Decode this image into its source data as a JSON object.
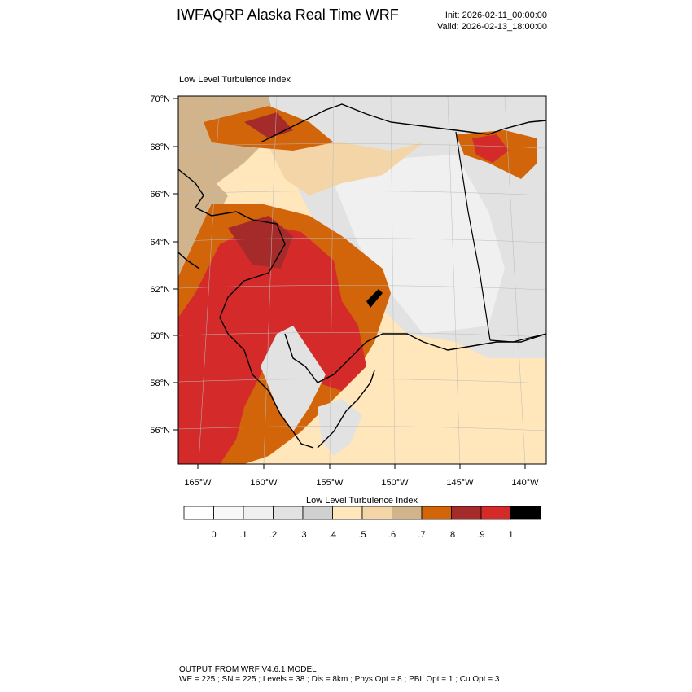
{
  "header": {
    "title": "IWFAQRP Alaska Real Time WRF",
    "init": "Init: 2026-02-11_00:00:00",
    "valid": "Valid: 2026-02-13_18:00:00"
  },
  "map": {
    "title": "Low Level Turbulence Index",
    "lat_labels": [
      "70°N",
      "68°N",
      "66°N",
      "64°N",
      "62°N",
      "60°N",
      "58°N",
      "56°N"
    ],
    "lon_labels": [
      "165°W",
      "160°W",
      "155°W",
      "150°W",
      "145°W",
      "140°W"
    ]
  },
  "colorbar": {
    "title": "Low Level Turbulence Index",
    "labels": [
      "0",
      ".1",
      ".2",
      ".3",
      ".4",
      ".5",
      ".6",
      ".7",
      ".8",
      ".9",
      "1"
    ],
    "colors": [
      "#ffffff",
      "#f8f8f8",
      "#f0f0f0",
      "#e2e2e2",
      "#d0d0d0",
      "#ffe6bb",
      "#f4d5a7",
      "#d2b48c",
      "#d2640a",
      "#a52a2a",
      "#d42a2a",
      "#000000"
    ]
  },
  "footer": {
    "line1": "OUTPUT FROM WRF V4.6.1 MODEL",
    "line2": "WE = 225 ; SN = 225 ; Levels = 38 ; Dis = 8km ; Phys Opt = 8 ; PBL Opt = 1 ; Cu Opt = 3"
  }
}
